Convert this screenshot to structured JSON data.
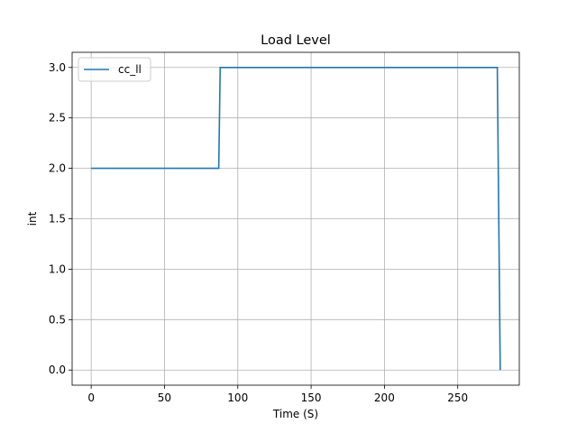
{
  "chart_data": {
    "type": "line",
    "title": "Load Level",
    "xlabel": "Time (S)",
    "ylabel": "int",
    "xlim": [
      -13,
      292
    ],
    "ylim": [
      -0.15,
      3.15
    ],
    "xticks": [
      0,
      50,
      100,
      150,
      200,
      250
    ],
    "yticks": [
      0.0,
      0.5,
      1.0,
      1.5,
      2.0,
      2.5,
      3.0
    ],
    "xtick_labels": [
      "0",
      "50",
      "100",
      "150",
      "200",
      "250"
    ],
    "ytick_labels": [
      "0.0",
      "0.5",
      "1.0",
      "1.5",
      "2.0",
      "2.5",
      "3.0"
    ],
    "grid": true,
    "legend": "upper-left",
    "series": [
      {
        "name": "cc_ll",
        "color": "#1f77b4",
        "x": [
          0,
          87,
          88,
          277,
          279
        ],
        "y": [
          2,
          2,
          3,
          3,
          0
        ]
      }
    ]
  }
}
